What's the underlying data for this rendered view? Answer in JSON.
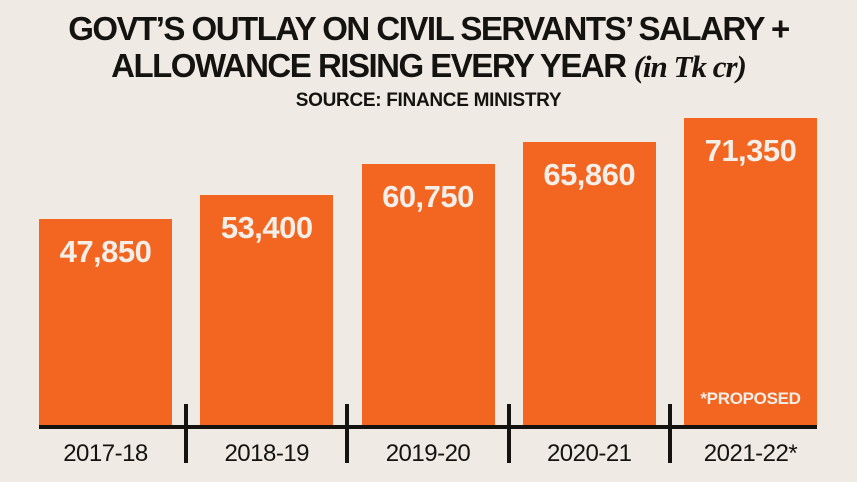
{
  "chart_data": {
    "type": "bar",
    "title_line1": "GOVT’S OUTLAY ON CIVIL SERVANTS’ SALARY +",
    "title_line2": "ALLOWANCE RISING EVERY YEAR",
    "unit_note": "(in Tk cr)",
    "source": "SOURCE: FINANCE MINISTRY",
    "categories": [
      "2017-18",
      "2018-19",
      "2019-20",
      "2020-21",
      "2021-22*"
    ],
    "values": [
      47850,
      53400,
      60750,
      65860,
      71350
    ],
    "value_labels": [
      "47,850",
      "53,400",
      "60,750",
      "65,860",
      "71,350"
    ],
    "annotation": "*PROPOSED",
    "annotation_bar_index": 4,
    "xlabel": "",
    "ylabel": "",
    "ylim": [
      0,
      71350
    ],
    "grid": false,
    "legend": "none",
    "bar_color": "#F26621",
    "background_color": "#EFEAE4",
    "value_text_color": "#F3EEE8",
    "axis_color": "#151310"
  }
}
